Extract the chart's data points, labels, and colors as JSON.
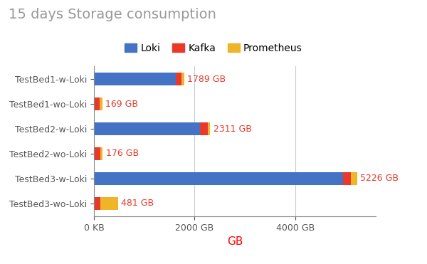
{
  "title": "15 days Storage consumption",
  "categories": [
    "TestBed1-w-Loki",
    "TestBed1-wo-Loki",
    "TestBed2-w-Loki",
    "TestBed2-wo-Loki",
    "TestBed3-w-Loki",
    "TestBed3-wo-Loki"
  ],
  "components": [
    "Loki",
    "Kafka",
    "Prometheus"
  ],
  "colors": [
    "#4472C4",
    "#E8392A",
    "#F0B429"
  ],
  "values": [
    [
      1620,
      120,
      49
    ],
    [
      0,
      120,
      49
    ],
    [
      2100,
      160,
      51
    ],
    [
      0,
      127,
      49
    ],
    [
      4950,
      160,
      116
    ],
    [
      0,
      127,
      354
    ]
  ],
  "totals": [
    "1789 GB",
    "169 GB",
    "2311 GB",
    "176 GB",
    "5226 GB",
    "481 GB"
  ],
  "total_label_color": "#E8392A",
  "xlabel": "GB",
  "xlabel_color": "#FF0000",
  "xticks": [
    0,
    2000,
    4000
  ],
  "xtick_labels": [
    "0 KB",
    "2000 GB",
    "4000 GB"
  ],
  "xlim": [
    0,
    5600
  ],
  "background_color": "#ffffff",
  "grid_color": "#cccccc",
  "title_color": "#999999",
  "title_fontsize": 14,
  "bar_height": 0.5,
  "figsize": [
    6.0,
    3.71
  ],
  "dpi": 100
}
